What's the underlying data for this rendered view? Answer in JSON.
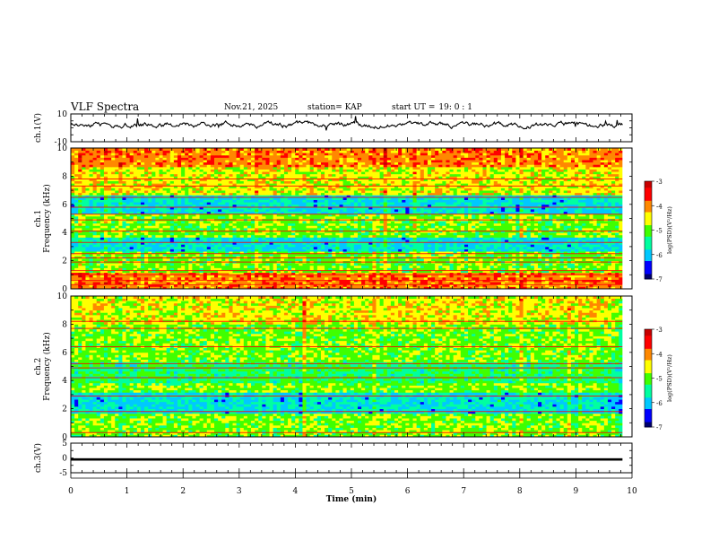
{
  "header": {
    "title": "VLF Spectra",
    "date": "Nov.21, 2025",
    "station": "station= KAP",
    "start_label": "start  UT  =",
    "start_value": "19: 0  : 1"
  },
  "chart_data": [
    {
      "type": "line",
      "id": "ch1-waveform",
      "ylabel": "ch.1(V)",
      "ylim": [
        -10,
        10
      ],
      "yticks": [
        "10",
        "-10"
      ],
      "xlim": [
        0,
        10
      ],
      "description_series": "Broadband amplitude trace fluctuating around roughly +1 to +4 V over the full time range."
    },
    {
      "type": "heatmap",
      "id": "ch1-spectrogram",
      "ylabel_lines": [
        "ch.1",
        "Frequency (kHz)"
      ],
      "ylim": [
        0,
        10
      ],
      "yticks": [
        "0",
        "2",
        "4",
        "6",
        "8",
        "10"
      ],
      "xlim": [
        0,
        10
      ],
      "data_end_min": 9.83,
      "bands_khz": [
        {
          "from": 0.0,
          "to": 1.2,
          "level": "high"
        },
        {
          "from": 1.2,
          "to": 2.6,
          "level": "mid"
        },
        {
          "from": 2.6,
          "to": 3.6,
          "level": "low"
        },
        {
          "from": 3.6,
          "to": 5.4,
          "level": "mid"
        },
        {
          "from": 5.4,
          "to": 6.6,
          "level": "low"
        },
        {
          "from": 6.6,
          "to": 8.6,
          "level": "mid-high"
        },
        {
          "from": 8.6,
          "to": 10.0,
          "level": "high"
        }
      ],
      "lines_khz": [
        0.3,
        0.6,
        1.0,
        1.3,
        1.9,
        2.2,
        2.5,
        3.3,
        4.1,
        4.9,
        5.3,
        5.8,
        6.5,
        7.3,
        7.8
      ],
      "colorbar": {
        "label": "log(PSD)(V²/Hz)",
        "range": [
          -7,
          -3
        ],
        "ticks": [
          "-3",
          "-4",
          "-5",
          "-6",
          "-7"
        ]
      }
    },
    {
      "type": "heatmap",
      "id": "ch2-spectrogram",
      "ylabel_lines": [
        "ch.2",
        "Frequency (kHz)"
      ],
      "ylim": [
        0,
        10
      ],
      "yticks": [
        "0",
        "2",
        "4",
        "6",
        "8",
        "10"
      ],
      "xlim": [
        0,
        10
      ],
      "data_end_min": 9.83,
      "bands_khz": [
        {
          "from": 0.0,
          "to": 1.6,
          "level": "mid"
        },
        {
          "from": 1.6,
          "to": 3.2,
          "level": "low"
        },
        {
          "from": 3.2,
          "to": 3.9,
          "level": "mid"
        },
        {
          "from": 3.9,
          "to": 5.4,
          "level": "mid-low"
        },
        {
          "from": 5.4,
          "to": 8.0,
          "level": "mid"
        },
        {
          "from": 8.0,
          "to": 10.0,
          "level": "mid-high"
        }
      ],
      "lines_khz": [
        0.3,
        1.8,
        2.9,
        4.2,
        4.9,
        5.2,
        6.4,
        7.7,
        8.2
      ],
      "colorbar": {
        "label": "log(PSD)(V²/Hz)",
        "range": [
          -7,
          -3
        ],
        "ticks": [
          "-3",
          "-4",
          "-5",
          "-6",
          "-7"
        ]
      }
    },
    {
      "type": "line",
      "id": "ch3-waveform",
      "ylabel": "ch.3(V)",
      "ylim": [
        -5,
        5
      ],
      "yticks": [
        "5",
        "0",
        "-5"
      ],
      "xlim": [
        0,
        10
      ],
      "value_band": [
        -0.9,
        -0.1
      ],
      "xlabel": "Time  (min)",
      "xticks": [
        "0",
        "1",
        "2",
        "3",
        "4",
        "5",
        "6",
        "7",
        "8",
        "9",
        "10"
      ]
    }
  ],
  "colors": {
    "colormap": [
      "#00006e",
      "#0000ff",
      "#00c8ff",
      "#00ffa0",
      "#40ff00",
      "#ffff00",
      "#ff8800",
      "#ff0000",
      "#c80000"
    ]
  }
}
